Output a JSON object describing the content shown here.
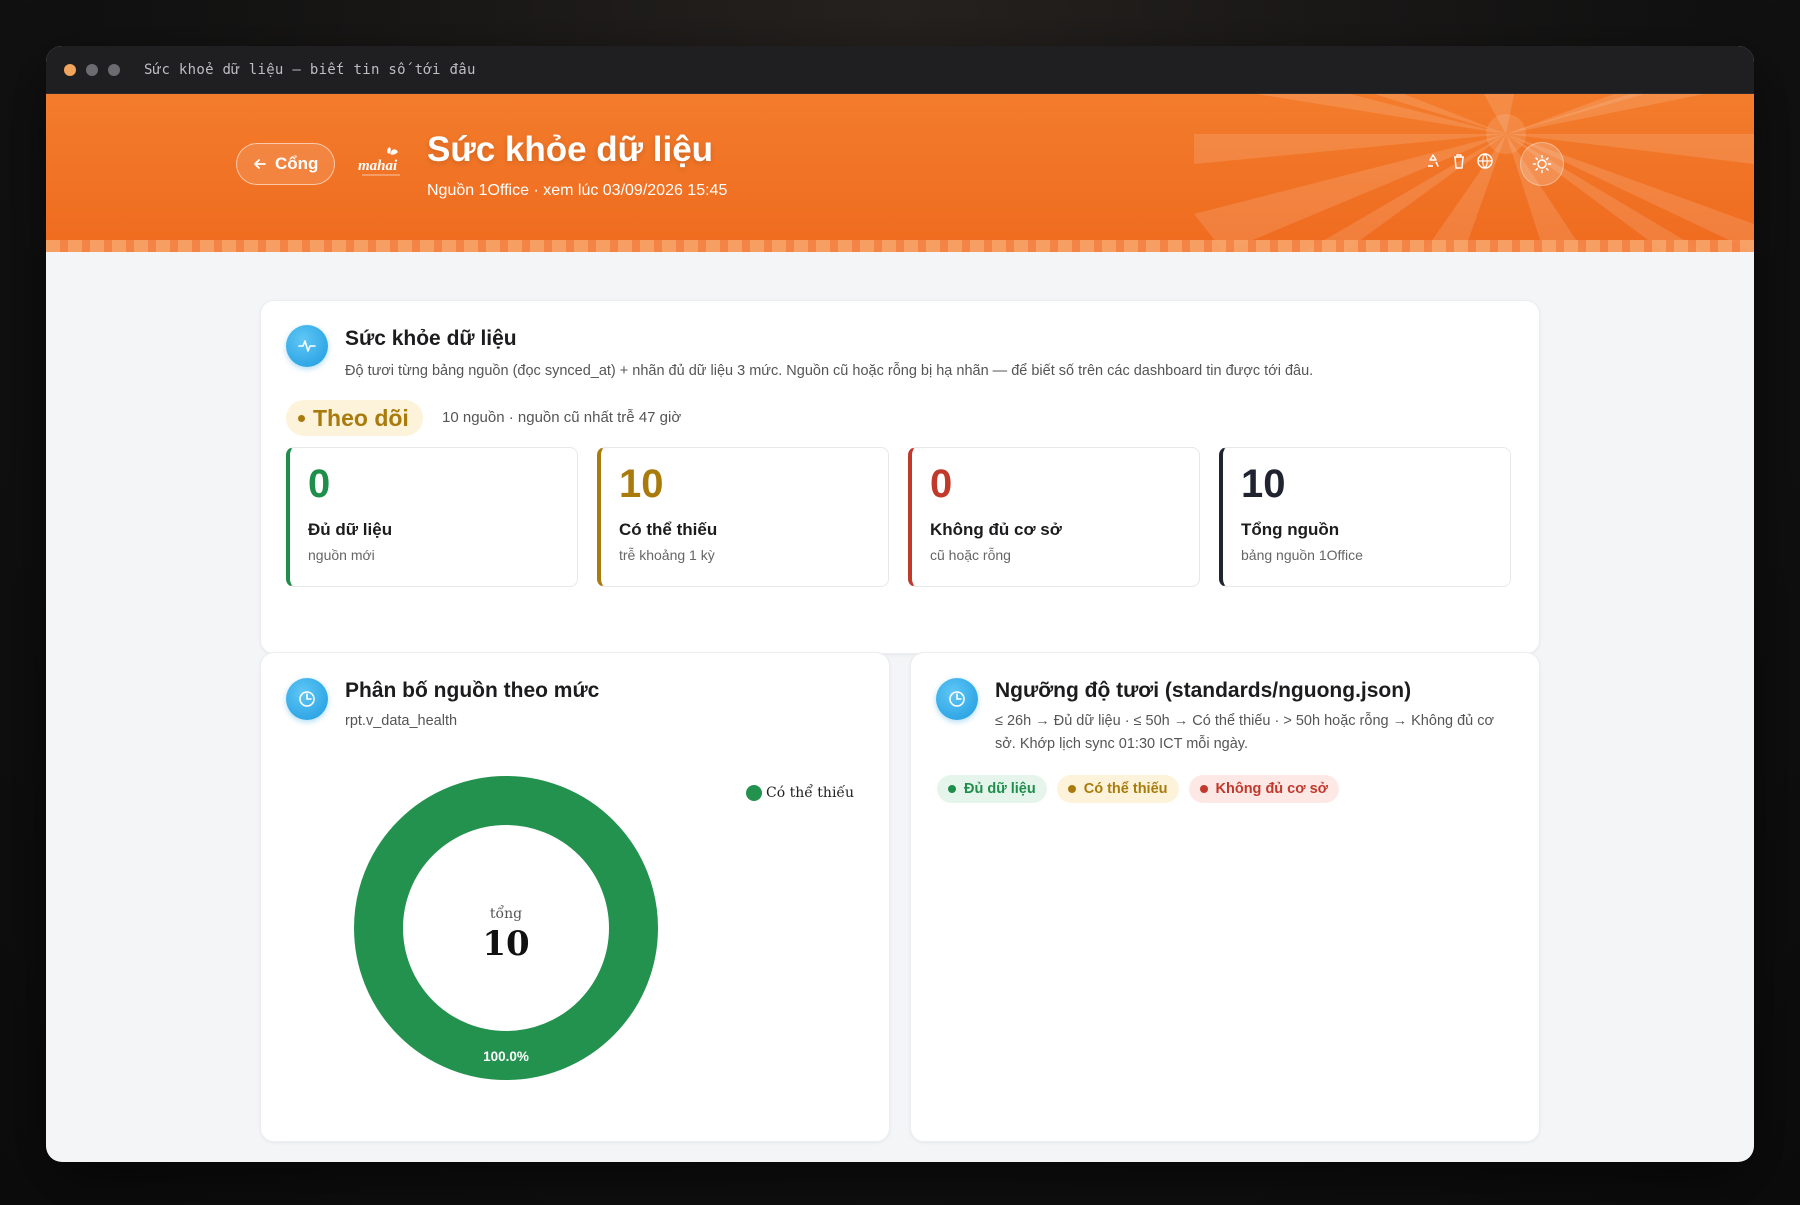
{
  "window": {
    "title": "Sức khoẻ dữ liệu — biết tin số tới đâu"
  },
  "header": {
    "back_label": "Cổng",
    "logo_text": "mahai",
    "title": "Sức khỏe dữ liệu",
    "subtitle": "Nguồn 1Office · xem lúc 03/09/2026 15:45"
  },
  "health": {
    "title": "Sức khỏe dữ liệu",
    "description": "Độ tươi từng bảng nguồn (đọc synced_at) + nhãn đủ dữ liệu 3 mức. Nguồn cũ hoặc rỗng bị hạ nhãn — để biết số trên các dashboard tin được tới đâu.",
    "status_label": "Theo dõi",
    "status_note": "10 nguồn · nguồn cũ nhất trễ 47 giờ",
    "stats": [
      {
        "value": "0",
        "label": "Đủ dữ liệu",
        "sub": "nguồn mới",
        "color": "#1e8e4a"
      },
      {
        "value": "10",
        "label": "Có thể thiếu",
        "sub": "trễ khoảng 1 kỳ",
        "color": "#a97a0c"
      },
      {
        "value": "0",
        "label": "Không đủ cơ sở",
        "sub": "cũ hoặc rỗng",
        "color": "#c0392b"
      },
      {
        "value": "10",
        "label": "Tổng nguồn",
        "sub": "bảng nguồn 1Office",
        "color": "#1f2430"
      }
    ]
  },
  "distribution": {
    "title": "Phân bố nguồn theo mức",
    "source": "rpt.v_data_health",
    "center_label": "tổng",
    "center_value": "10",
    "slice_label": "100.0%"
  },
  "chart_data": {
    "type": "pie",
    "categories": [
      "Có thể thiếu"
    ],
    "values": [
      10
    ],
    "colors": [
      "#22924e"
    ],
    "title": "",
    "legend": "top-right"
  },
  "threshold": {
    "title": "Ngưỡng độ tươi (standards/nguong.json)",
    "description": "≤ 26h → Đủ dữ liệu · ≤ 50h → Có thể thiếu · > 50h hoặc rỗng → Không đủ cơ sở. Khớp lịch sync 01:30 ICT mỗi ngày.",
    "chips": [
      {
        "label": "Đủ dữ liệu",
        "color": "#1e8e4a",
        "bg": "#e6f5ec"
      },
      {
        "label": "Có thể thiếu",
        "color": "#a97a0c",
        "bg": "#fdf3da"
      },
      {
        "label": "Không đủ cơ sở",
        "color": "#c0392b",
        "bg": "#fde8e6"
      }
    ]
  }
}
